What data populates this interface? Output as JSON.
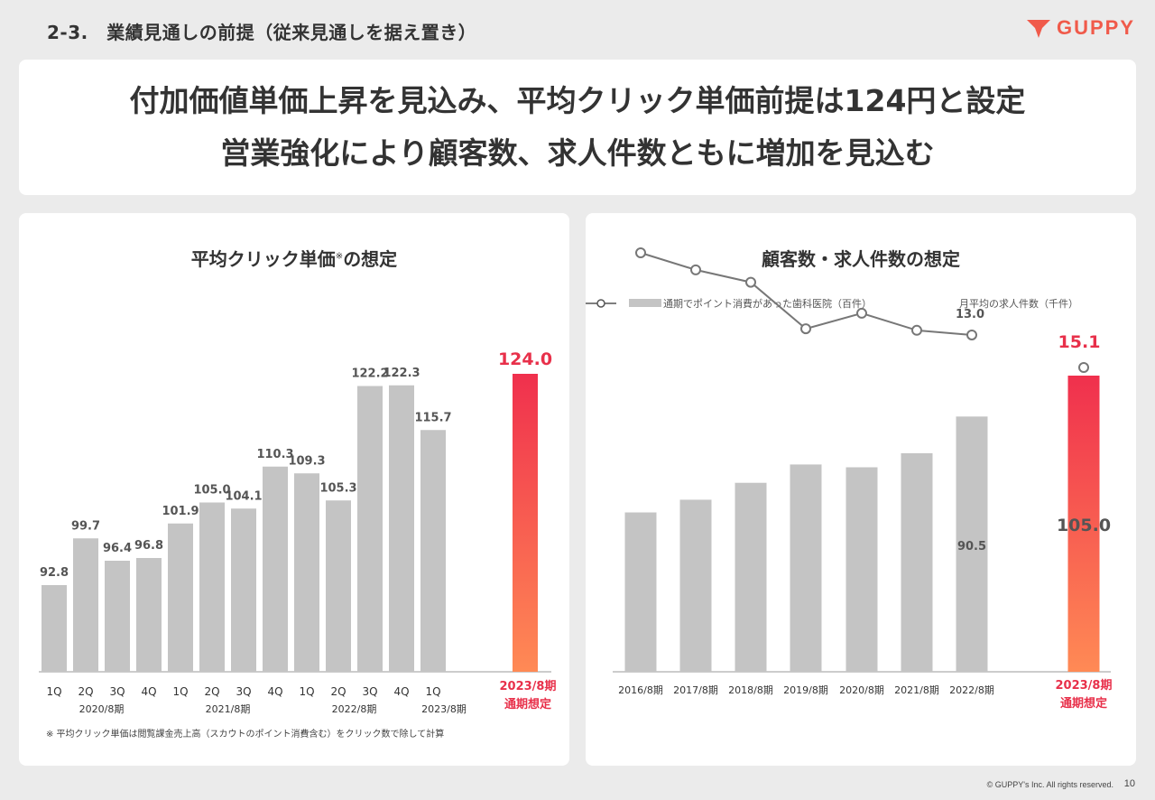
{
  "header": {
    "section_title": "2-3.　業績見通しの前提（従来見通しを据え置き）",
    "logo_text": "GUPPY",
    "brand_color": "#f05a4a"
  },
  "headline": {
    "line1": "付加価値単価上昇を見込み、平均クリック単価前提は124円と設定",
    "line2": "営業強化により顧客数、求人件数ともに増加を見込む"
  },
  "left_panel": {
    "title": "平均クリック単価",
    "title_mark": "※",
    "title_suffix": "の想定",
    "footnote": "※ 平均クリック単価は閲覧課金売上高（スカウトのポイント消費含む）をクリック数で除して計算"
  },
  "right_panel": {
    "title": "顧客数・求人件数の想定",
    "legend_bar": "通期でポイント消費があった歯科医院（百件）",
    "legend_line": "月平均の求人件数（千件）"
  },
  "footer": {
    "copyright": "© GUPPY's Inc. All rights reserved.",
    "page": "10"
  },
  "chart_data": [
    {
      "type": "bar",
      "title": "平均クリック単価※の想定",
      "categories": [
        "1Q",
        "2Q",
        "3Q",
        "4Q",
        "1Q",
        "2Q",
        "3Q",
        "4Q",
        "1Q",
        "2Q",
        "3Q",
        "4Q",
        "1Q",
        "2023/8期 通期想定"
      ],
      "groups": [
        {
          "label": "2020/8期",
          "start": 0,
          "end": 3
        },
        {
          "label": "2021/8期",
          "start": 4,
          "end": 7
        },
        {
          "label": "2022/8期",
          "start": 8,
          "end": 11
        },
        {
          "label": "2023/8期",
          "start": 12,
          "end": 12
        }
      ],
      "values": [
        92.8,
        99.7,
        96.4,
        96.8,
        101.9,
        105.0,
        104.1,
        110.3,
        109.3,
        105.3,
        122.2,
        122.3,
        115.7,
        124.0
      ],
      "value_labels": [
        "92.8",
        "99.7",
        "96.4",
        "96.8",
        "101.9",
        "105.0",
        "104.1",
        "110.3",
        "109.3",
        "105.3",
        "122.2",
        "122.3",
        "115.7",
        "124.0"
      ],
      "forecast_label_line1": "2023/8期",
      "forecast_label_line2": "通期想定",
      "bar_color": "#c4c4c4",
      "forecast_gradient": [
        "#f0304d",
        "#ff8a55"
      ],
      "highlight_color": "#e8304a"
    },
    {
      "type": "bar",
      "title": "顧客数・求人件数の想定",
      "categories": [
        "2016/8期",
        "2017/8期",
        "2018/8期",
        "2019/8期",
        "2020/8期",
        "2021/8期",
        "2022/8期",
        "2023/8期 通期想定"
      ],
      "series": [
        {
          "name": "通期でポイント消費があった歯科医院（百件）",
          "kind": "bar",
          "values": [
            56.5,
            61.0,
            67.0,
            73.5,
            72.5,
            77.5,
            90.5,
            105.0
          ],
          "labels": {
            "6": "90.5",
            "7": "105.0"
          }
        },
        {
          "name": "月平均の求人件数（千件）",
          "kind": "line",
          "values": [
            7.7,
            8.8,
            9.6,
            12.6,
            11.6,
            12.7,
            13.0,
            15.1
          ],
          "labels": {
            "6": "13.0",
            "7": "15.1"
          }
        }
      ],
      "forecast_label_line1": "2023/8期",
      "forecast_label_line2": "通期想定",
      "bar_color": "#c4c4c4",
      "line_color": "#777777",
      "forecast_gradient": [
        "#f0304d",
        "#ff8a55"
      ],
      "highlight_color": "#e8304a"
    }
  ]
}
